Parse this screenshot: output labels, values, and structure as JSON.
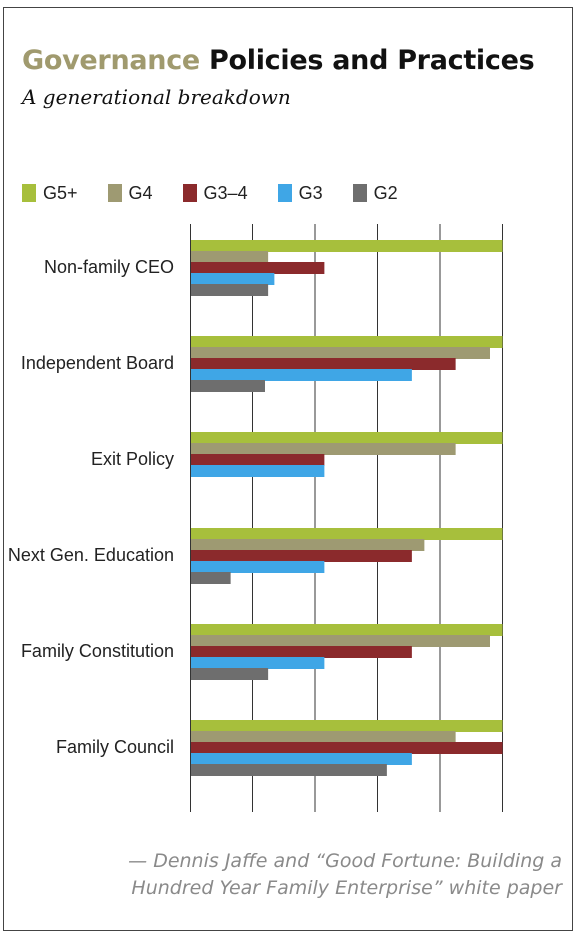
{
  "title": {
    "accent": "Governance",
    "rest": "Policies and Practices"
  },
  "subtitle": "A generational breakdown",
  "colors": {
    "G5+": "#a7bf3c",
    "G4": "#9e9a72",
    "G3–4": "#8b2a2c",
    "G3": "#3fa6e6",
    "G2": "#6e6e6e"
  },
  "chart_data": {
    "type": "bar",
    "orientation": "horizontal",
    "categories": [
      "Non-family CEO",
      "Independent Board",
      "Exit Policy",
      "Next Gen. Education",
      "Family Constitution",
      "Family Council"
    ],
    "series": [
      {
        "name": "G5+",
        "values": [
          1.0,
          1.0,
          1.0,
          1.0,
          1.0,
          1.0
        ]
      },
      {
        "name": "G4",
        "values": [
          0.25,
          0.96,
          0.85,
          0.75,
          0.96,
          0.85
        ]
      },
      {
        "name": "G3–4",
        "values": [
          0.43,
          0.85,
          0.43,
          0.71,
          0.71,
          1.0
        ]
      },
      {
        "name": "G3",
        "values": [
          0.27,
          0.71,
          0.43,
          0.43,
          0.43,
          0.71
        ]
      },
      {
        "name": "G2",
        "values": [
          0.25,
          0.24,
          null,
          0.13,
          0.25,
          0.63
        ]
      }
    ],
    "xlim": [
      0,
      1.2
    ],
    "grid": true,
    "legend": "top-left"
  },
  "credit": {
    "line1": "— Dennis Jaffe and “Good Fortune: Building a",
    "line2": "Hundred Year Family Enterprise” white paper"
  }
}
